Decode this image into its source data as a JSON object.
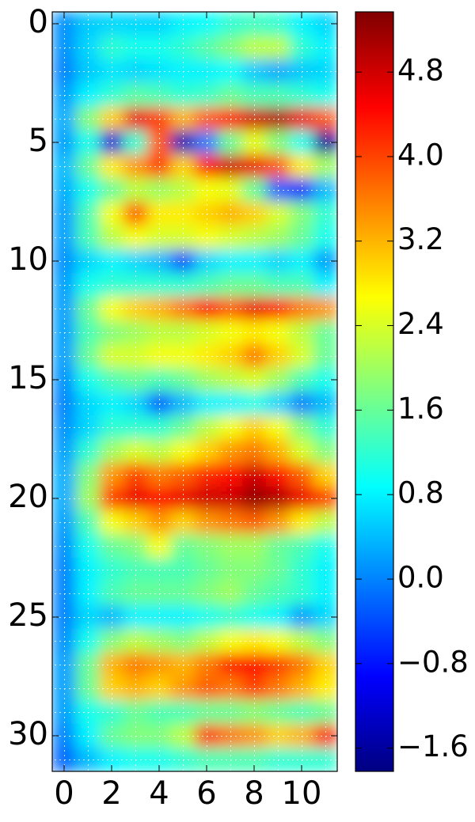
{
  "chart_data": {
    "type": "heatmap",
    "colormap": "jet",
    "grid": true,
    "z": [
      [
        0.1,
        0.5,
        0.6,
        0.6,
        0.6,
        0.8,
        0.9,
        1.2,
        1.3,
        1.2,
        0.8,
        0.6
      ],
      [
        0.1,
        0.6,
        1.2,
        1.0,
        1.0,
        1.2,
        1.5,
        1.8,
        2.2,
        2.2,
        1.2,
        0.8
      ],
      [
        0.0,
        0.5,
        0.7,
        0.6,
        0.7,
        0.8,
        0.8,
        0.9,
        0.5,
        0.3,
        0.5,
        0.6
      ],
      [
        0.2,
        0.8,
        1.2,
        1.5,
        1.4,
        1.2,
        1.3,
        1.6,
        1.4,
        1.4,
        1.2,
        1.0
      ],
      [
        0.3,
        1.8,
        3.0,
        4.6,
        4.0,
        3.2,
        3.8,
        4.3,
        4.8,
        5.0,
        4.6,
        3.8
      ],
      [
        0.2,
        1.0,
        -1.2,
        1.2,
        3.8,
        -1.4,
        0.0,
        1.6,
        2.5,
        1.8,
        1.0,
        -1.6
      ],
      [
        0.4,
        1.6,
        2.8,
        3.4,
        4.0,
        3.0,
        4.3,
        4.8,
        4.6,
        3.8,
        2.8,
        2.0
      ],
      [
        0.3,
        1.0,
        1.6,
        2.2,
        2.0,
        2.2,
        2.6,
        2.5,
        1.6,
        -0.2,
        -0.6,
        0.4
      ],
      [
        0.2,
        1.4,
        2.6,
        3.8,
        2.8,
        2.8,
        3.0,
        3.2,
        3.0,
        2.4,
        1.8,
        1.2
      ],
      [
        0.2,
        1.4,
        2.2,
        2.6,
        2.4,
        2.4,
        2.6,
        2.4,
        2.2,
        2.0,
        1.6,
        1.0
      ],
      [
        0.1,
        0.6,
        0.8,
        0.6,
        0.4,
        -0.3,
        0.6,
        0.8,
        0.8,
        0.6,
        0.8,
        0.2
      ],
      [
        0.2,
        1.0,
        1.2,
        1.2,
        1.2,
        1.2,
        1.4,
        1.6,
        1.6,
        1.4,
        1.4,
        0.8
      ],
      [
        0.2,
        1.6,
        2.6,
        3.0,
        3.2,
        3.6,
        4.4,
        3.8,
        4.6,
        4.2,
        3.6,
        3.4
      ],
      [
        0.2,
        1.4,
        1.8,
        2.0,
        2.2,
        2.2,
        2.4,
        2.6,
        2.8,
        2.6,
        2.2,
        1.6
      ],
      [
        0.2,
        1.6,
        2.4,
        2.4,
        2.6,
        2.6,
        2.8,
        3.0,
        3.6,
        3.0,
        2.4,
        1.6
      ],
      [
        0.1,
        1.0,
        1.4,
        1.6,
        1.4,
        1.6,
        2.0,
        2.2,
        2.4,
        2.0,
        1.4,
        1.0
      ],
      [
        0.0,
        0.6,
        0.8,
        0.6,
        -0.2,
        0.4,
        0.8,
        0.8,
        1.0,
        0.6,
        0.0,
        0.4
      ],
      [
        0.1,
        0.6,
        1.2,
        1.2,
        1.2,
        1.6,
        2.2,
        2.6,
        3.0,
        2.6,
        1.8,
        1.2
      ],
      [
        0.2,
        1.2,
        2.0,
        2.4,
        2.2,
        2.6,
        3.0,
        3.4,
        3.6,
        3.2,
        2.4,
        1.8
      ],
      [
        0.3,
        1.8,
        3.4,
        4.0,
        3.6,
        3.8,
        4.2,
        4.4,
        4.8,
        4.4,
        3.8,
        3.0
      ],
      [
        0.3,
        2.0,
        4.0,
        4.6,
        4.4,
        4.6,
        4.8,
        4.8,
        5.2,
        5.0,
        4.6,
        4.0
      ],
      [
        0.2,
        1.4,
        2.6,
        3.0,
        3.4,
        3.0,
        3.4,
        3.6,
        3.8,
        3.4,
        2.8,
        2.2
      ],
      [
        0.1,
        1.0,
        1.6,
        1.8,
        2.6,
        1.6,
        1.8,
        2.0,
        2.0,
        1.6,
        1.4,
        1.0
      ],
      [
        0.0,
        0.8,
        1.2,
        1.4,
        1.4,
        1.4,
        1.6,
        1.8,
        1.8,
        1.6,
        1.2,
        0.8
      ],
      [
        0.0,
        0.8,
        1.4,
        1.6,
        1.6,
        1.6,
        1.8,
        2.0,
        1.6,
        1.4,
        1.2,
        0.8
      ],
      [
        0.0,
        0.6,
        0.4,
        0.8,
        0.8,
        0.8,
        1.0,
        1.2,
        1.0,
        0.8,
        0.2,
        0.6
      ],
      [
        0.1,
        1.0,
        1.8,
        2.2,
        2.0,
        1.8,
        2.2,
        2.6,
        2.8,
        2.6,
        2.2,
        1.8
      ],
      [
        0.2,
        1.6,
        3.2,
        3.6,
        3.4,
        3.2,
        3.6,
        4.2,
        4.4,
        4.0,
        3.6,
        3.0
      ],
      [
        0.2,
        1.6,
        3.0,
        3.2,
        3.0,
        3.4,
        3.8,
        3.6,
        4.0,
        3.6,
        3.2,
        2.8
      ],
      [
        0.2,
        1.0,
        1.2,
        1.6,
        1.4,
        1.4,
        1.6,
        1.6,
        1.8,
        1.6,
        1.4,
        1.6
      ],
      [
        0.0,
        0.8,
        1.6,
        1.8,
        1.8,
        2.2,
        4.0,
        3.6,
        3.4,
        3.0,
        3.2,
        4.2
      ],
      [
        -0.2,
        0.4,
        0.8,
        1.0,
        1.0,
        1.2,
        1.4,
        1.4,
        1.4,
        1.2,
        1.2,
        1.2
      ]
    ],
    "xlim": [
      -0.5,
      11.5
    ],
    "ylim": [
      31.5,
      -0.5
    ],
    "xticks": [
      0,
      2,
      4,
      6,
      8,
      10
    ],
    "yticks": [
      0,
      5,
      10,
      15,
      20,
      25,
      30
    ],
    "clim": [
      -1.82,
      5.37
    ],
    "cticks": [
      {
        "value": -1.6,
        "label": "−1.6"
      },
      {
        "value": -0.8,
        "label": "−0.8"
      },
      {
        "value": 0,
        "label": "0.0"
      },
      0.8,
      1.6,
      2.4,
      3.2,
      {
        "value": 4,
        "label": "4.0"
      },
      4.8
    ]
  }
}
